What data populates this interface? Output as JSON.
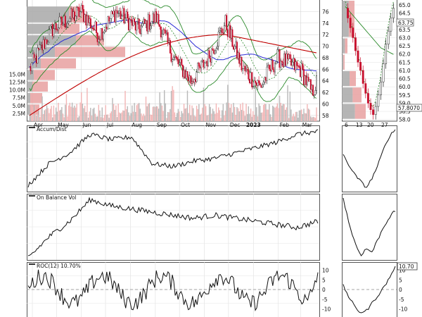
{
  "chart_data": [
    {
      "type": "candlestick",
      "panel": "price",
      "y_ticks": [
        58,
        60,
        62,
        64,
        66,
        68,
        70,
        72,
        74,
        76
      ],
      "ylim": [
        57,
        78
      ],
      "volume_ticks": [
        "2.5M",
        "5.0M",
        "7.5M",
        "10.0M",
        "12.5M",
        "15.0M"
      ],
      "volume_values": [
        2.5,
        5.0,
        7.5,
        10.0,
        12.5,
        15.0
      ],
      "x_labels": [
        "Apr",
        "May",
        "Jun",
        "Jul",
        "Aug",
        "Sep",
        "Oct",
        "Nov",
        "Dec",
        "2023",
        "Feb",
        "Mar"
      ],
      "x_label_dates": [
        "2022-04-01",
        "2022-05-01",
        "2022-06-01",
        "2022-07-01",
        "2022-08-01",
        "2022-09-01",
        "2022-10-01",
        "2022-11-01",
        "2022-12-01",
        "2023-01-01",
        "2023-02-01",
        "2023-03-01"
      ],
      "last_close": 63.75,
      "series_colors": {
        "sma_long": "#c00000",
        "sma_short": "#2b2bd6",
        "bollinger": "#2a8a2a",
        "sma_dotted": "#2a8a2a",
        "volume_up": "#f2b5b5",
        "volume_down": "#b8b8b8",
        "vbp_up": "#e8a0a0",
        "vbp_down": "#a8a8a8"
      }
    },
    {
      "type": "candlestick",
      "panel": "price-zoom",
      "x_labels": [
        "6",
        "13",
        "20",
        "27"
      ],
      "y_ticks": [
        58.0,
        58.5,
        59.0,
        59.5,
        60.0,
        60.5,
        61.0,
        61.5,
        62.0,
        62.5,
        63.0,
        63.5,
        64.0,
        64.5,
        65.0
      ],
      "y_tick_labels": [
        "58.0",
        "58.5",
        "59.0",
        "59.5",
        "60.0",
        "60.5",
        "61.0",
        "61.5",
        "62.0",
        "62.5",
        "63.0",
        "63.5",
        "64.0",
        "64.5",
        "65.0"
      ],
      "ylim": [
        57.9,
        65.3
      ],
      "last_value_label": "63.75",
      "secondary_label": "57.8070"
    },
    {
      "type": "line",
      "panel": "indicator",
      "title": "Accum/Dist",
      "grid": true
    },
    {
      "type": "line",
      "panel": "indicator",
      "title": "On Balance Vol",
      "grid": true
    },
    {
      "type": "line",
      "panel": "indicator",
      "title": "ROC(12) 10.70%",
      "y_ticks": [
        10,
        5,
        0,
        -5,
        -10
      ],
      "ylim": [
        -12,
        12
      ],
      "last_value_label": "10.70"
    }
  ]
}
